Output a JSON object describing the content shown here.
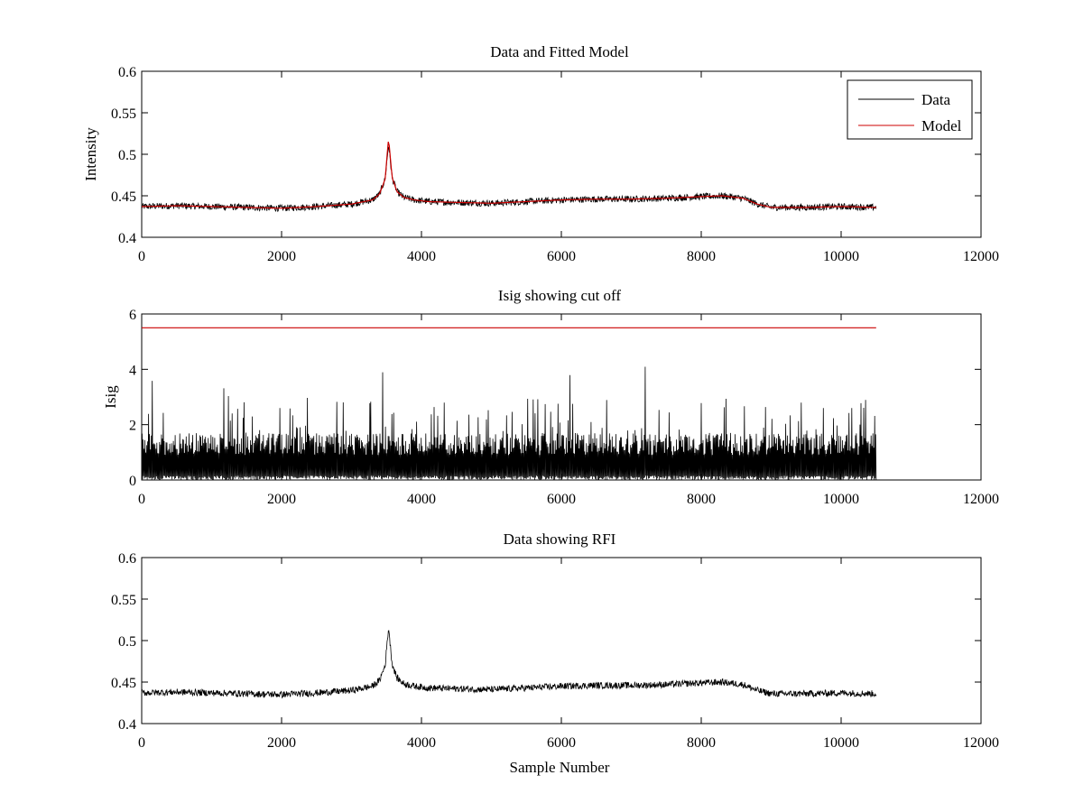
{
  "chart_data": [
    {
      "type": "line",
      "title": "Data and Fitted Model",
      "xlabel": "",
      "ylabel": "Intensity",
      "xlim": [
        0,
        12000
      ],
      "ylim": [
        0.4,
        0.6
      ],
      "xticks": [
        "0",
        "2000",
        "4000",
        "6000",
        "8000",
        "10000",
        "12000"
      ],
      "yticks": [
        "0.4",
        "0.45",
        "0.5",
        "0.55",
        "0.6"
      ],
      "legend": {
        "placement": "top-right",
        "entries": [
          "Data",
          "Model"
        ]
      },
      "series": [
        {
          "name": "Data",
          "color": "#000000",
          "noise": 0.004,
          "x": [
            0,
            500,
            1000,
            1500,
            2000,
            2500,
            3000,
            3300,
            3400,
            3480,
            3530,
            3580,
            3650,
            3750,
            3900,
            4100,
            4500,
            5000,
            5500,
            6000,
            6500,
            7000,
            7500,
            8000,
            8300,
            8600,
            8800,
            9000,
            9500,
            10000,
            10500
          ],
          "y": [
            0.437,
            0.438,
            0.437,
            0.436,
            0.435,
            0.437,
            0.44,
            0.445,
            0.452,
            0.47,
            0.512,
            0.472,
            0.455,
            0.448,
            0.445,
            0.443,
            0.442,
            0.441,
            0.443,
            0.445,
            0.446,
            0.446,
            0.447,
            0.449,
            0.45,
            0.447,
            0.44,
            0.436,
            0.436,
            0.437,
            0.436
          ]
        },
        {
          "name": "Model",
          "color": "#cc0000",
          "noise": 0,
          "x": [
            0,
            500,
            1000,
            1500,
            2000,
            2500,
            3000,
            3300,
            3400,
            3480,
            3530,
            3580,
            3650,
            3750,
            3900,
            4100,
            4500,
            5000,
            5500,
            6000,
            6500,
            7000,
            7500,
            8000,
            8300,
            8600,
            8800,
            9000,
            9500,
            10000,
            10500
          ],
          "y": [
            0.437,
            0.438,
            0.437,
            0.436,
            0.435,
            0.437,
            0.44,
            0.445,
            0.452,
            0.47,
            0.52,
            0.472,
            0.455,
            0.448,
            0.445,
            0.443,
            0.442,
            0.441,
            0.443,
            0.445,
            0.446,
            0.446,
            0.447,
            0.449,
            0.45,
            0.447,
            0.44,
            0.436,
            0.436,
            0.437,
            0.436
          ]
        }
      ]
    },
    {
      "type": "line",
      "title": "Isig showing cut off",
      "xlabel": "",
      "ylabel": "Isig",
      "xlim": [
        0,
        12000
      ],
      "ylim": [
        0,
        6
      ],
      "xticks": [
        "0",
        "2000",
        "4000",
        "6000",
        "8000",
        "10000",
        "12000"
      ],
      "yticks": [
        "0",
        "2",
        "4",
        "6"
      ],
      "series": [
        {
          "name": "",
          "color": "#000000",
          "kind": "spiky",
          "x_range": [
            0,
            10500
          ],
          "typical_max": 1.6,
          "peak_max": 4.3
        },
        {
          "name": "",
          "color": "#cc0000",
          "x": [
            0,
            10500
          ],
          "y": [
            5.5,
            5.5
          ]
        }
      ]
    },
    {
      "type": "line",
      "title": "Data showing RFI",
      "xlabel": "Sample Number",
      "ylabel": "",
      "xlim": [
        0,
        12000
      ],
      "ylim": [
        0.4,
        0.6
      ],
      "xticks": [
        "0",
        "2000",
        "4000",
        "6000",
        "8000",
        "10000",
        "12000"
      ],
      "yticks": [
        "0.4",
        "0.45",
        "0.5",
        "0.55",
        "0.6"
      ],
      "series": [
        {
          "name": "",
          "color": "#000000",
          "noise": 0.004,
          "x": [
            0,
            500,
            1000,
            1500,
            2000,
            2500,
            3000,
            3300,
            3400,
            3480,
            3530,
            3580,
            3650,
            3750,
            3900,
            4100,
            4500,
            5000,
            5500,
            6000,
            6500,
            7000,
            7500,
            8000,
            8300,
            8600,
            8800,
            9000,
            9500,
            10000,
            10500
          ],
          "y": [
            0.437,
            0.438,
            0.437,
            0.436,
            0.435,
            0.437,
            0.44,
            0.445,
            0.452,
            0.47,
            0.516,
            0.472,
            0.455,
            0.448,
            0.445,
            0.443,
            0.442,
            0.441,
            0.443,
            0.445,
            0.446,
            0.446,
            0.447,
            0.449,
            0.45,
            0.447,
            0.44,
            0.436,
            0.436,
            0.437,
            0.436
          ]
        }
      ]
    }
  ]
}
